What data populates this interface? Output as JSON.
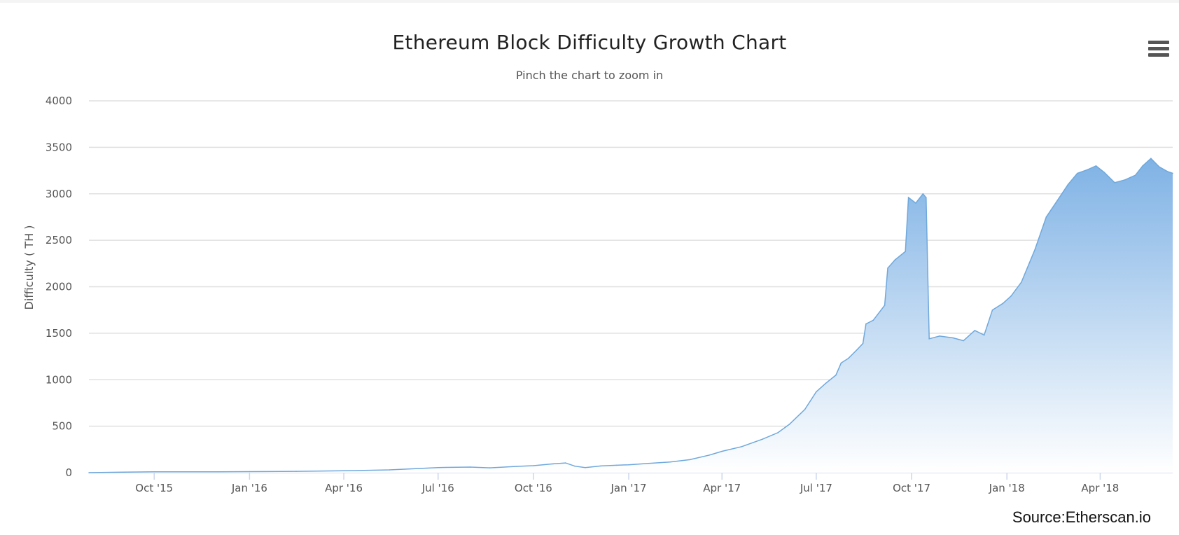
{
  "header": {
    "title": "Ethereum Block Difficulty Growth Chart",
    "subtitle": "Pinch the chart to zoom in",
    "menu_icon": "hamburger-menu-icon"
  },
  "footer": {
    "source": "Source:Etherscan.io"
  },
  "colors": {
    "area_top": "#7fb2e5",
    "area_bottom": "#ffffff",
    "line": "#6fa8dc",
    "grid": "#e0e0e0",
    "axis": "#ccd6eb"
  },
  "chart_data": {
    "type": "area",
    "title": "Ethereum Block Difficulty Growth Chart",
    "subtitle": "Pinch the chart to zoom in",
    "ylabel": "Difficulty ( TH )",
    "xlabel": "",
    "ylim": [
      0,
      4000
    ],
    "yticks": [
      0,
      500,
      1000,
      1500,
      2000,
      2500,
      3000,
      3500,
      4000
    ],
    "xticks": [
      {
        "label": "Oct '15",
        "date": "2015-10-01"
      },
      {
        "label": "Jan '16",
        "date": "2016-01-01"
      },
      {
        "label": "Apr '16",
        "date": "2016-04-01"
      },
      {
        "label": "Jul '16",
        "date": "2016-07-01"
      },
      {
        "label": "Oct '16",
        "date": "2016-10-01"
      },
      {
        "label": "Jan '17",
        "date": "2017-01-01"
      },
      {
        "label": "Apr '17",
        "date": "2017-04-01"
      },
      {
        "label": "Jul '17",
        "date": "2017-07-01"
      },
      {
        "label": "Oct '17",
        "date": "2017-10-01"
      },
      {
        "label": "Jan '18",
        "date": "2018-01-01"
      },
      {
        "label": "Apr '18",
        "date": "2018-04-01"
      }
    ],
    "xlim": [
      "2015-07-30",
      "2018-06-10"
    ],
    "grid": true,
    "legend": "none",
    "series": [
      {
        "points": [
          [
            "2015-07-30",
            0
          ],
          [
            "2015-09-01",
            5
          ],
          [
            "2015-10-01",
            10
          ],
          [
            "2015-12-01",
            10
          ],
          [
            "2016-01-01",
            11
          ],
          [
            "2016-02-15",
            14
          ],
          [
            "2016-04-01",
            20
          ],
          [
            "2016-05-15",
            30
          ],
          [
            "2016-07-01",
            55
          ],
          [
            "2016-08-01",
            60
          ],
          [
            "2016-08-20",
            52
          ],
          [
            "2016-09-15",
            68
          ],
          [
            "2016-10-01",
            75
          ],
          [
            "2016-10-20",
            95
          ],
          [
            "2016-11-01",
            105
          ],
          [
            "2016-11-10",
            70
          ],
          [
            "2016-11-20",
            55
          ],
          [
            "2016-12-05",
            72
          ],
          [
            "2016-12-20",
            80
          ],
          [
            "2017-01-01",
            85
          ],
          [
            "2017-01-20",
            100
          ],
          [
            "2017-02-10",
            115
          ],
          [
            "2017-03-01",
            140
          ],
          [
            "2017-03-20",
            190
          ],
          [
            "2017-04-01",
            230
          ],
          [
            "2017-04-20",
            280
          ],
          [
            "2017-05-10",
            360
          ],
          [
            "2017-05-25",
            430
          ],
          [
            "2017-06-05",
            520
          ],
          [
            "2017-06-20",
            680
          ],
          [
            "2017-07-01",
            870
          ],
          [
            "2017-07-10",
            960
          ],
          [
            "2017-07-20",
            1050
          ],
          [
            "2017-07-25",
            1180
          ],
          [
            "2017-08-01",
            1230
          ],
          [
            "2017-08-10",
            1330
          ],
          [
            "2017-08-15",
            1390
          ],
          [
            "2017-08-18",
            1600
          ],
          [
            "2017-08-25",
            1640
          ],
          [
            "2017-09-05",
            1800
          ],
          [
            "2017-09-08",
            2200
          ],
          [
            "2017-09-15",
            2290
          ],
          [
            "2017-09-25",
            2380
          ],
          [
            "2017-09-28",
            2960
          ],
          [
            "2017-10-05",
            2900
          ],
          [
            "2017-10-12",
            3000
          ],
          [
            "2017-10-15",
            2960
          ],
          [
            "2017-10-18",
            1440
          ],
          [
            "2017-10-28",
            1470
          ],
          [
            "2017-11-10",
            1450
          ],
          [
            "2017-11-20",
            1420
          ],
          [
            "2017-12-01",
            1530
          ],
          [
            "2017-12-10",
            1480
          ],
          [
            "2017-12-18",
            1750
          ],
          [
            "2017-12-28",
            1820
          ],
          [
            "2018-01-05",
            1900
          ],
          [
            "2018-01-15",
            2050
          ],
          [
            "2018-01-28",
            2400
          ],
          [
            "2018-02-08",
            2750
          ],
          [
            "2018-02-20",
            2950
          ],
          [
            "2018-03-01",
            3100
          ],
          [
            "2018-03-10",
            3220
          ],
          [
            "2018-03-20",
            3260
          ],
          [
            "2018-03-28",
            3300
          ],
          [
            "2018-04-05",
            3230
          ],
          [
            "2018-04-15",
            3120
          ],
          [
            "2018-04-25",
            3150
          ],
          [
            "2018-05-05",
            3200
          ],
          [
            "2018-05-12",
            3300
          ],
          [
            "2018-05-20",
            3380
          ],
          [
            "2018-05-28",
            3290
          ],
          [
            "2018-06-05",
            3240
          ],
          [
            "2018-06-10",
            3220
          ]
        ]
      }
    ]
  }
}
